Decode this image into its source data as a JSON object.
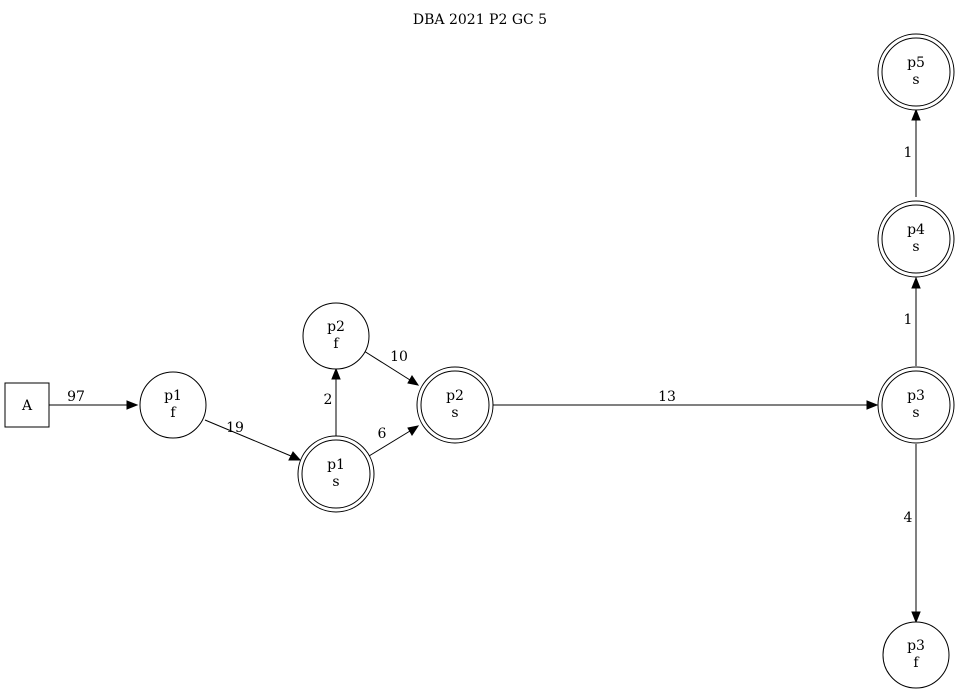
{
  "title": "DBA 2021 P2 GC 5",
  "nodes": {
    "A": {
      "lines": [
        "A"
      ]
    },
    "p1f": {
      "lines": [
        "p1",
        "f"
      ]
    },
    "p1s": {
      "lines": [
        "p1",
        "s"
      ]
    },
    "p2f": {
      "lines": [
        "p2",
        "f"
      ]
    },
    "p2s": {
      "lines": [
        "p2",
        "s"
      ]
    },
    "p3s": {
      "lines": [
        "p3",
        "s"
      ]
    },
    "p3f": {
      "lines": [
        "p3",
        "f"
      ]
    },
    "p4s": {
      "lines": [
        "p4",
        "s"
      ]
    },
    "p5s": {
      "lines": [
        "p5",
        "s"
      ]
    }
  },
  "edges": {
    "A_p1f": {
      "from": "A",
      "to": "p1f",
      "label": "97"
    },
    "p1f_p1s": {
      "from": "p1f",
      "to": "p1s",
      "label": "19"
    },
    "p1s_p2f": {
      "from": "p1s",
      "to": "p2f",
      "label": "2"
    },
    "p1s_p2s": {
      "from": "p1s",
      "to": "p2s",
      "label": "6"
    },
    "p2f_p2s": {
      "from": "p2f",
      "to": "p2s",
      "label": "10"
    },
    "p2s_p3s": {
      "from": "p2s",
      "to": "p3s",
      "label": "13"
    },
    "p3s_p4s": {
      "from": "p3s",
      "to": "p4s",
      "label": "1"
    },
    "p4s_p5s": {
      "from": "p4s",
      "to": "p5s",
      "label": "1"
    },
    "p3s_p3f": {
      "from": "p3s",
      "to": "p3f",
      "label": "4"
    }
  }
}
